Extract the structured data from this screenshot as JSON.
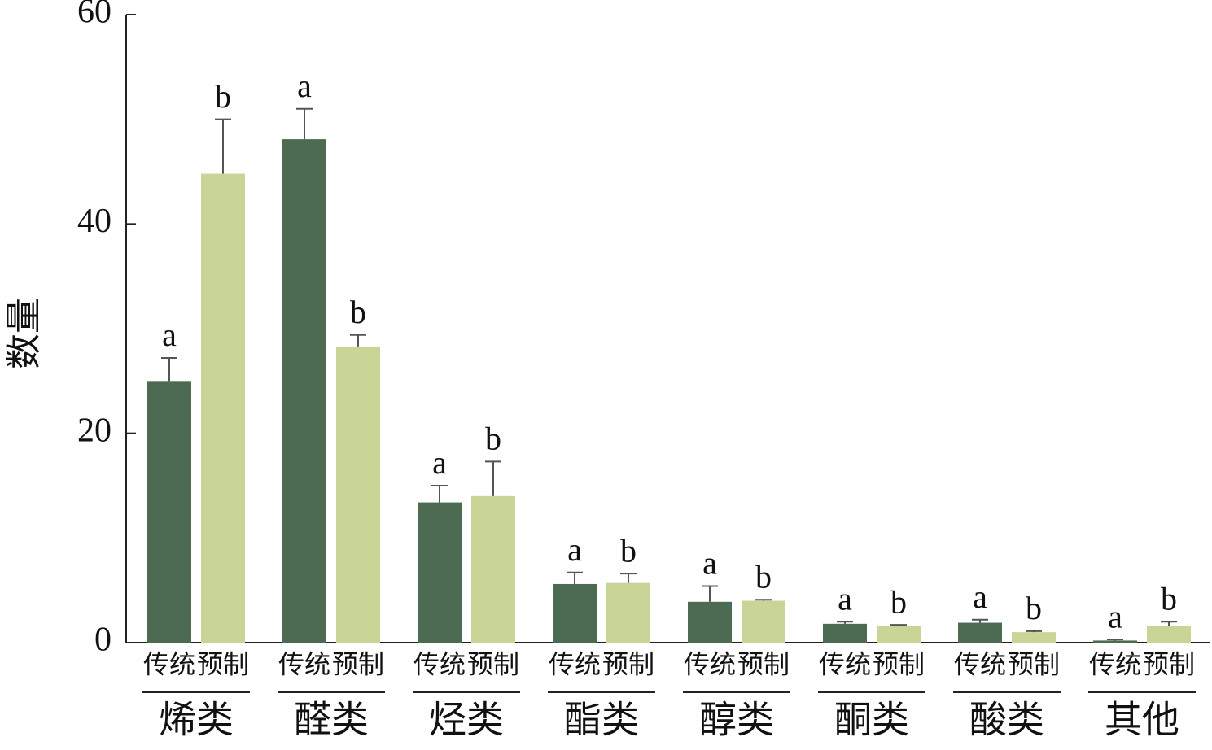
{
  "chart_data": {
    "type": "bar",
    "y_label": "数量",
    "categories": [
      "烯类",
      "醛类",
      "烃类",
      "酯类",
      "醇类",
      "酮类",
      "酸类",
      "其他"
    ],
    "series": [
      {
        "name": "传统",
        "color": "#4d6a52",
        "values": [
          25,
          48.1,
          13.4,
          5.6,
          3.9,
          1.8,
          1.9,
          0.2
        ],
        "errors": [
          2.2,
          2.9,
          1.6,
          1.1,
          1.5,
          0.2,
          0.3,
          0.1
        ],
        "labels": [
          "a",
          "a",
          "a",
          "a",
          "a",
          "a",
          "a",
          "a"
        ]
      },
      {
        "name": "预制",
        "color": "#c8d596",
        "values": [
          44.8,
          28.3,
          14.0,
          5.7,
          4.0,
          1.6,
          1.0,
          1.6
        ],
        "errors": [
          5.2,
          1.1,
          3.3,
          0.9,
          0.1,
          0.1,
          0.1,
          0.4
        ],
        "labels": [
          "b",
          "b",
          "b",
          "b",
          "b",
          "b",
          "b",
          "b"
        ]
      }
    ],
    "ylim": [
      0,
      60
    ],
    "yticks": [
      0,
      20,
      40,
      60
    ],
    "grid": false
  }
}
